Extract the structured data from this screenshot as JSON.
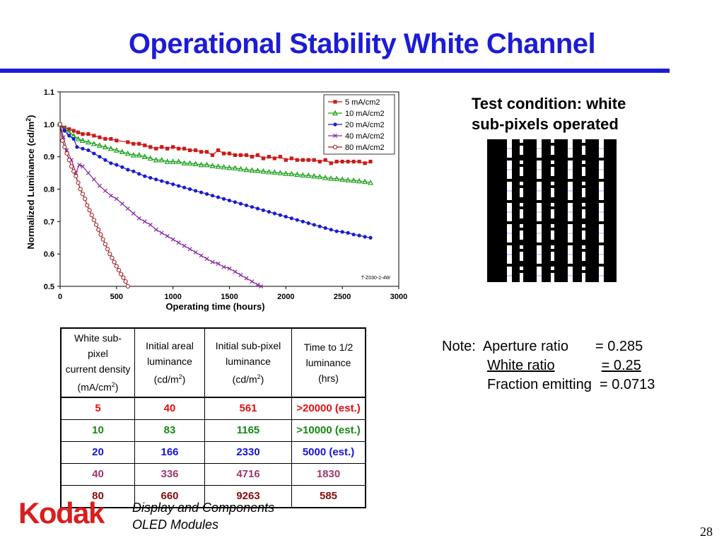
{
  "slide": {
    "title": "Operational Stability White Channel",
    "page_number": "28",
    "footer_line1": "Display and Components",
    "footer_line2": "OLED Modules",
    "logo_text": "Kodak",
    "test_condition_line1": "Test condition:  white",
    "test_condition_line2": "sub-pixels operated"
  },
  "colors": {
    "title": "#1c1cd6",
    "logo": "#d81e1e"
  },
  "note": {
    "label": "Note:",
    "rows": [
      {
        "name": "Aperture ratio",
        "value": "= 0.285"
      },
      {
        "name": "White ratio",
        "value": "= 0.25"
      },
      {
        "name": "Fraction emitting",
        "value": "= 0.0713"
      }
    ]
  },
  "table": {
    "headers": [
      {
        "lines": [
          "White sub-pixel",
          "current density"
        ],
        "unit_pre": "(mA/cm",
        "sup": "2",
        "unit_post": ")"
      },
      {
        "lines": [
          "Initial areal",
          "luminance"
        ],
        "unit_pre": "(cd/m",
        "sup": "2",
        "unit_post": ")"
      },
      {
        "lines": [
          "Initial sub-pixel",
          "luminance"
        ],
        "unit_pre": "(cd/m",
        "sup": "2",
        "unit_post": ")"
      },
      {
        "lines": [
          "Time to 1/2",
          "luminance"
        ],
        "unit_pre": "(hrs)",
        "sup": "",
        "unit_post": ""
      }
    ],
    "rows": [
      {
        "color": "#e01010",
        "cells": [
          "5",
          "40",
          "561",
          ">20000 (est.)"
        ]
      },
      {
        "color": "#138a13",
        "cells": [
          "10",
          "83",
          "1165",
          ">10000 (est.)"
        ]
      },
      {
        "color": "#1414d8",
        "cells": [
          "20",
          "166",
          "2330",
          "5000 (est.)"
        ]
      },
      {
        "color": "#a0386e",
        "cells": [
          "40",
          "336",
          "4716",
          "1830"
        ]
      },
      {
        "color": "#8a0c0c",
        "cells": [
          "80",
          "660",
          "9263",
          "585"
        ]
      }
    ]
  },
  "chart_data": {
    "type": "line",
    "xlabel": "Operating time (hours)",
    "ylabel_pre": "Normalized Luminance (cd/m",
    "ylabel_sup": "2",
    "ylabel_post": ")",
    "xlim": [
      0,
      3000
    ],
    "ylim": [
      0.5,
      1.1
    ],
    "xticks": [
      0,
      500,
      1000,
      1500,
      2000,
      2500,
      3000
    ],
    "yticks": [
      0.5,
      0.6,
      0.7,
      0.8,
      0.9,
      1.0,
      1.1
    ],
    "ytick_labels": [
      "0.5",
      "0.6",
      "0.7",
      "0.8",
      "0.9",
      "1.0",
      "1.1"
    ],
    "annotation": "T-Z030-2-4W",
    "legend_position": "top-right",
    "grid": false,
    "series": [
      {
        "name": "5 mA/cm2",
        "color": "#cc1a1a",
        "marker": "square",
        "x": [
          0,
          40,
          80,
          120,
          160,
          200,
          250,
          300,
          350,
          400,
          450,
          500,
          600,
          650,
          700,
          750,
          800,
          850,
          900,
          950,
          1000,
          1050,
          1100,
          1150,
          1200,
          1250,
          1300,
          1350,
          1400,
          1450,
          1500,
          1550,
          1600,
          1650,
          1700,
          1750,
          1800,
          1850,
          1900,
          1950,
          2000,
          2050,
          2100,
          2150,
          2200,
          2250,
          2300,
          2350,
          2400,
          2450,
          2500,
          2550,
          2600,
          2650,
          2700,
          2750
        ],
        "y": [
          1.0,
          0.99,
          0.985,
          0.98,
          0.975,
          0.97,
          0.97,
          0.965,
          0.96,
          0.955,
          0.955,
          0.95,
          0.945,
          0.94,
          0.94,
          0.935,
          0.93,
          0.925,
          0.93,
          0.925,
          0.93,
          0.925,
          0.925,
          0.92,
          0.92,
          0.915,
          0.915,
          0.905,
          0.92,
          0.91,
          0.91,
          0.905,
          0.905,
          0.905,
          0.9,
          0.905,
          0.895,
          0.9,
          0.895,
          0.9,
          0.89,
          0.895,
          0.89,
          0.89,
          0.89,
          0.89,
          0.885,
          0.89,
          0.88,
          0.885,
          0.885,
          0.885,
          0.885,
          0.885,
          0.88,
          0.885
        ]
      },
      {
        "name": "10 mA/cm2",
        "color": "#1aa01a",
        "marker": "triangle",
        "x": [
          0,
          40,
          80,
          120,
          160,
          200,
          250,
          300,
          350,
          400,
          450,
          500,
          550,
          600,
          650,
          700,
          750,
          800,
          850,
          900,
          950,
          1000,
          1050,
          1100,
          1150,
          1200,
          1250,
          1300,
          1350,
          1400,
          1450,
          1500,
          1550,
          1600,
          1650,
          1700,
          1750,
          1800,
          1850,
          1900,
          1950,
          2000,
          2050,
          2100,
          2150,
          2200,
          2250,
          2300,
          2350,
          2400,
          2450,
          2500,
          2550,
          2600,
          2650,
          2700,
          2750
        ],
        "y": [
          1.0,
          0.985,
          0.975,
          0.965,
          0.955,
          0.95,
          0.945,
          0.94,
          0.935,
          0.93,
          0.925,
          0.92,
          0.915,
          0.91,
          0.905,
          0.905,
          0.9,
          0.895,
          0.89,
          0.89,
          0.885,
          0.885,
          0.885,
          0.88,
          0.88,
          0.878,
          0.875,
          0.875,
          0.872,
          0.87,
          0.868,
          0.866,
          0.865,
          0.862,
          0.86,
          0.858,
          0.857,
          0.855,
          0.853,
          0.852,
          0.85,
          0.848,
          0.847,
          0.845,
          0.843,
          0.842,
          0.84,
          0.838,
          0.835,
          0.833,
          0.832,
          0.83,
          0.828,
          0.827,
          0.825,
          0.823,
          0.82
        ]
      },
      {
        "name": "20 mA/cm2",
        "color": "#1a1ad0",
        "marker": "circle",
        "x": [
          0,
          40,
          80,
          120,
          150,
          200,
          250,
          300,
          350,
          400,
          450,
          500,
          550,
          600,
          650,
          700,
          750,
          800,
          850,
          900,
          950,
          1000,
          1050,
          1100,
          1150,
          1200,
          1250,
          1300,
          1350,
          1400,
          1450,
          1500,
          1550,
          1600,
          1650,
          1700,
          1750,
          1800,
          1850,
          1900,
          1950,
          2000,
          2050,
          2100,
          2150,
          2200,
          2250,
          2300,
          2350,
          2400,
          2450,
          2500,
          2550,
          2600,
          2650,
          2700,
          2750
        ],
        "y": [
          1.0,
          0.98,
          0.965,
          0.955,
          0.93,
          0.925,
          0.92,
          0.91,
          0.9,
          0.89,
          0.88,
          0.875,
          0.868,
          0.86,
          0.855,
          0.847,
          0.84,
          0.835,
          0.83,
          0.825,
          0.82,
          0.815,
          0.81,
          0.805,
          0.8,
          0.795,
          0.79,
          0.785,
          0.78,
          0.775,
          0.77,
          0.765,
          0.76,
          0.755,
          0.75,
          0.745,
          0.74,
          0.735,
          0.73,
          0.725,
          0.72,
          0.715,
          0.71,
          0.705,
          0.7,
          0.695,
          0.69,
          0.685,
          0.68,
          0.675,
          0.67,
          0.668,
          0.665,
          0.66,
          0.657,
          0.653,
          0.65
        ]
      },
      {
        "name": "40 mA/cm2",
        "color": "#8a2aa0",
        "marker": "x",
        "x": [
          0,
          30,
          60,
          100,
          140,
          170,
          200,
          250,
          300,
          350,
          400,
          450,
          500,
          550,
          600,
          650,
          700,
          750,
          800,
          850,
          900,
          950,
          1000,
          1050,
          1100,
          1150,
          1200,
          1250,
          1300,
          1350,
          1400,
          1450,
          1500,
          1550,
          1600,
          1650,
          1700,
          1750,
          1780
        ],
        "y": [
          1.0,
          0.96,
          0.92,
          0.89,
          0.85,
          0.875,
          0.87,
          0.85,
          0.83,
          0.81,
          0.795,
          0.78,
          0.77,
          0.755,
          0.74,
          0.725,
          0.71,
          0.7,
          0.69,
          0.675,
          0.665,
          0.655,
          0.645,
          0.635,
          0.625,
          0.615,
          0.605,
          0.595,
          0.585,
          0.575,
          0.57,
          0.56,
          0.555,
          0.545,
          0.535,
          0.525,
          0.515,
          0.505,
          0.5
        ]
      },
      {
        "name": "80 mA/cm2",
        "color": "#a01818",
        "marker": "open-circle",
        "x": [
          0,
          20,
          40,
          60,
          80,
          100,
          120,
          140,
          160,
          180,
          200,
          220,
          240,
          260,
          280,
          300,
          320,
          340,
          360,
          380,
          400,
          420,
          440,
          460,
          480,
          500,
          520,
          540,
          560,
          580,
          600
        ],
        "y": [
          1.0,
          0.95,
          0.93,
          0.91,
          0.89,
          0.87,
          0.855,
          0.84,
          0.82,
          0.8,
          0.785,
          0.77,
          0.75,
          0.735,
          0.72,
          0.705,
          0.69,
          0.675,
          0.66,
          0.645,
          0.63,
          0.615,
          0.6,
          0.588,
          0.575,
          0.562,
          0.55,
          0.538,
          0.527,
          0.515,
          0.5
        ]
      }
    ]
  }
}
